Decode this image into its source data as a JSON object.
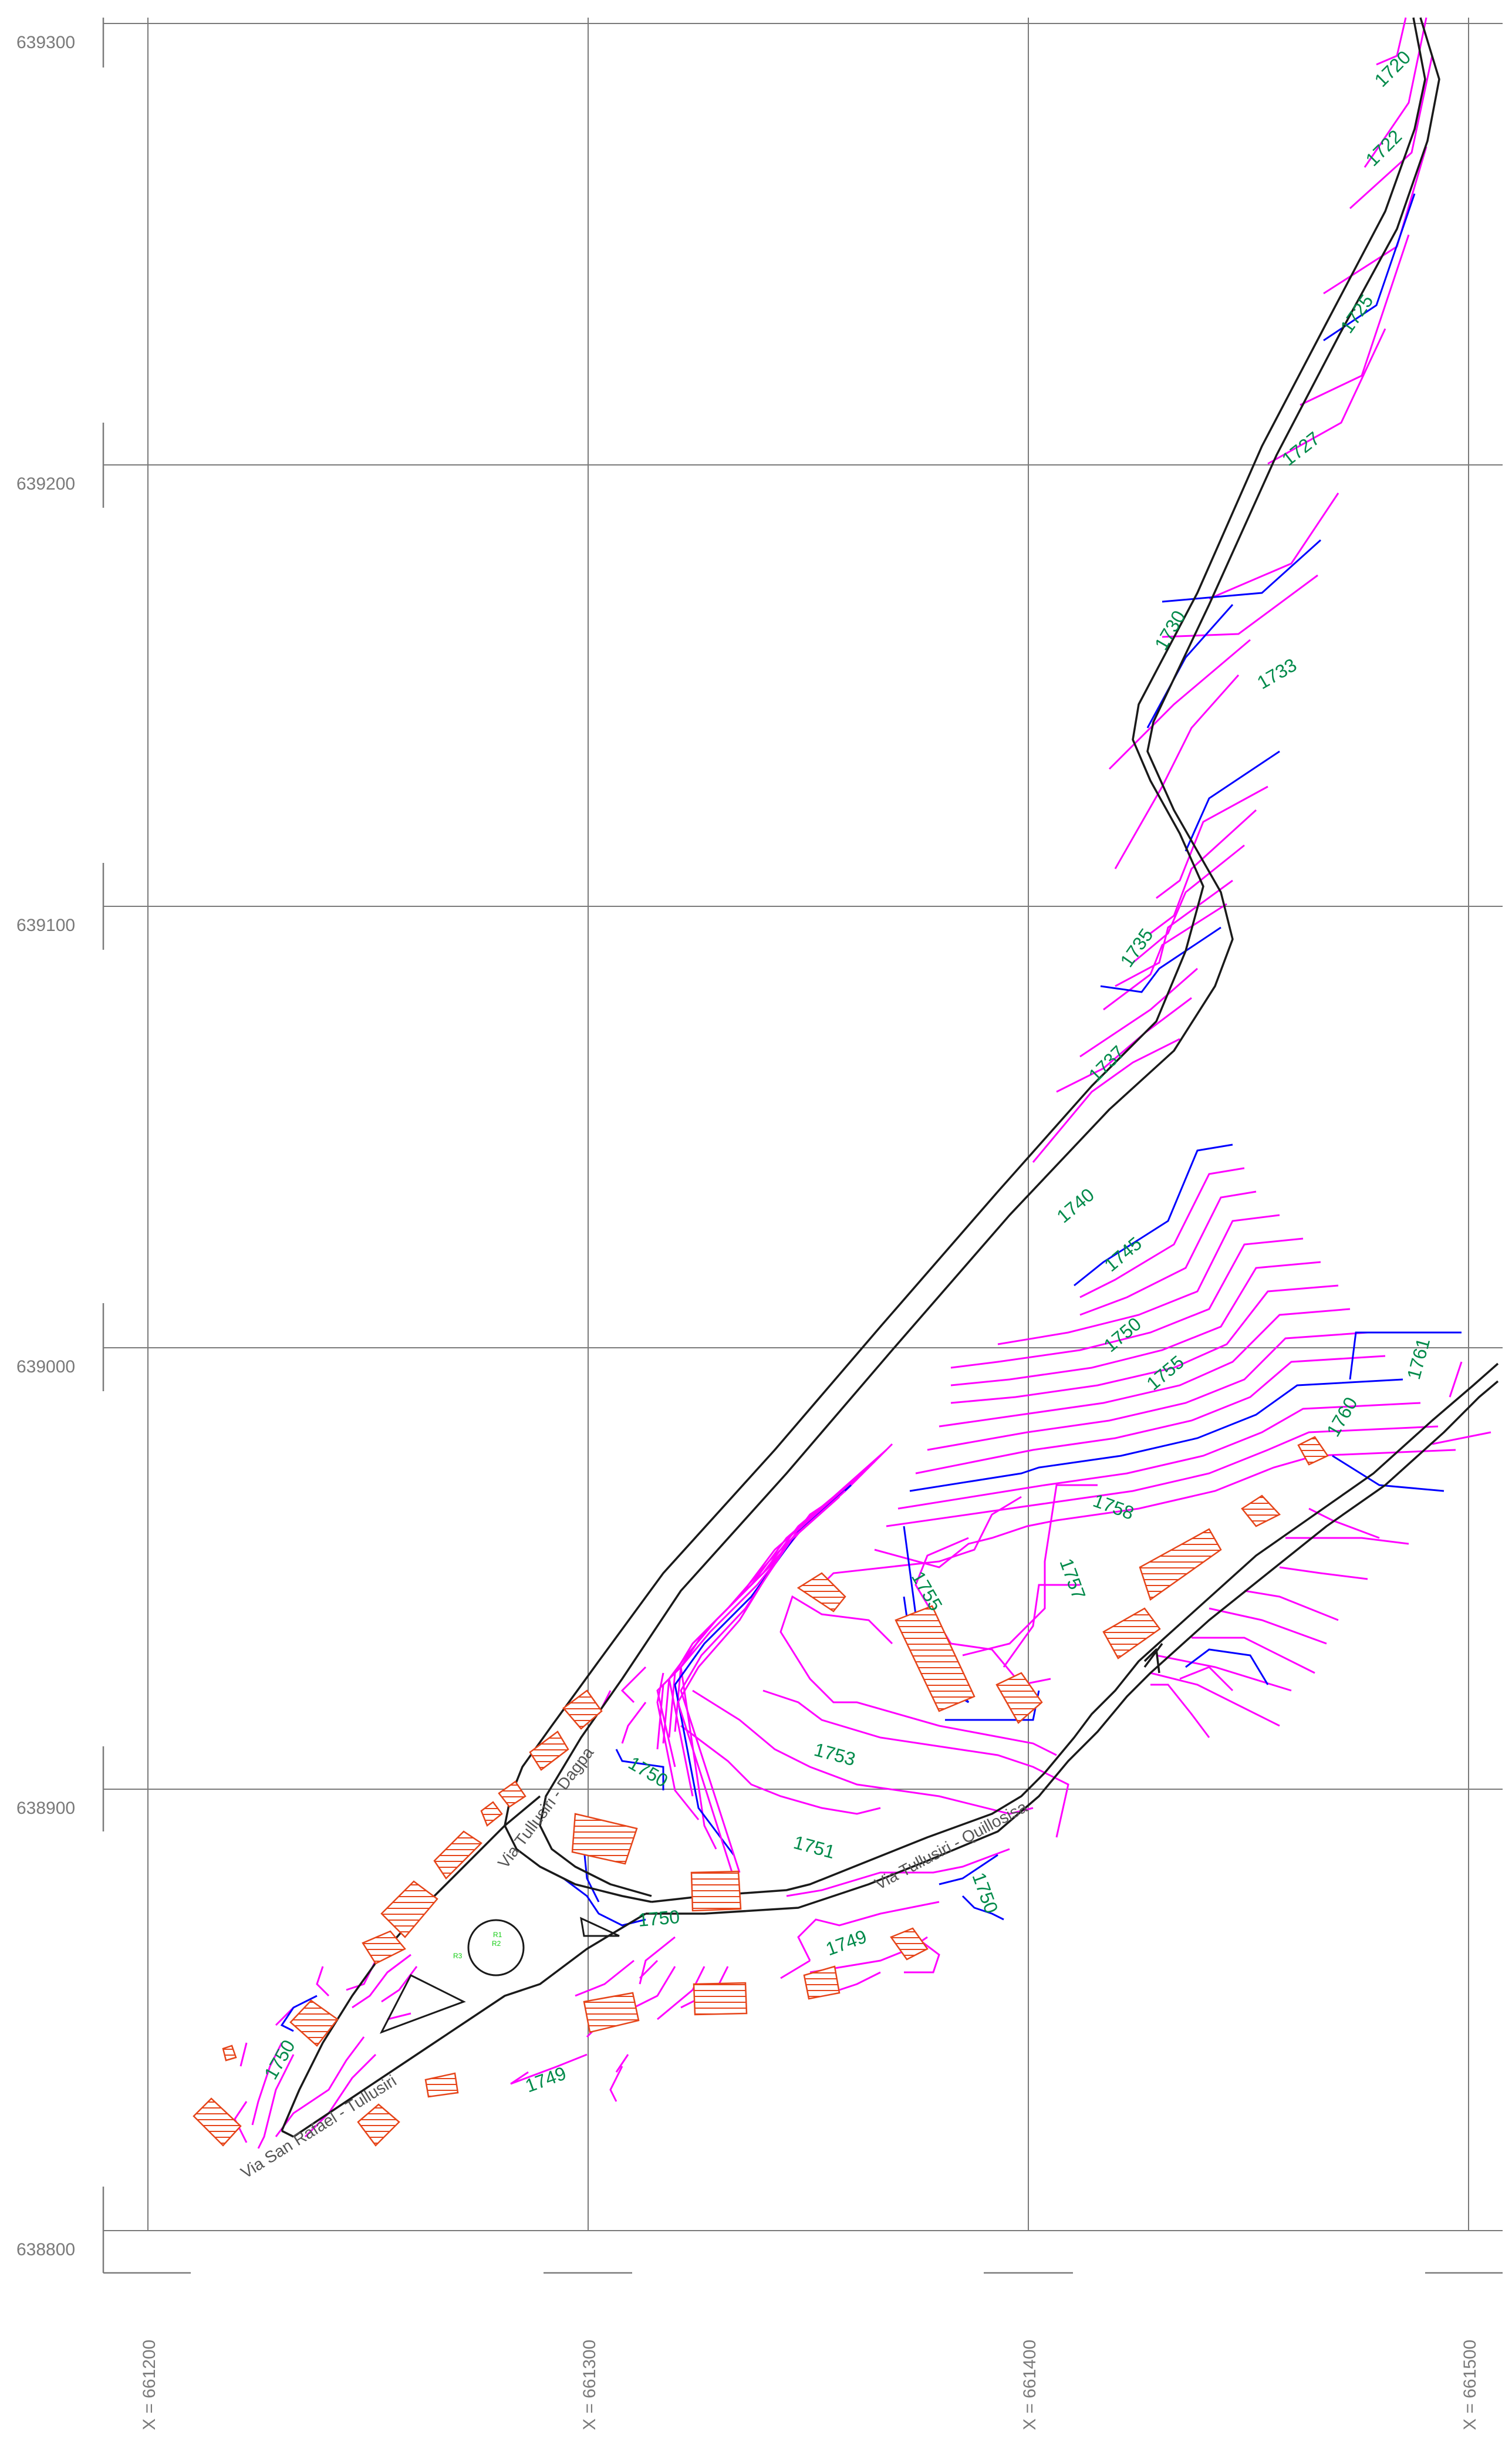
{
  "grid": {
    "northings": [
      "639300",
      "639200",
      "639100",
      "639000",
      "638900",
      "638800"
    ],
    "eastings": [
      "X = 661200",
      "X = 661300",
      "X = 661400",
      "X = 661500"
    ]
  },
  "contour_labels": [
    "1720",
    "1722",
    "1725",
    "1727",
    "1730",
    "1733",
    "1735",
    "1737",
    "1740",
    "1745",
    "1750",
    "1755",
    "1760",
    "1761",
    "1758",
    "1757",
    "1755",
    "1753",
    "1750",
    "1751",
    "1750",
    "1750",
    "1749",
    "1750",
    "1749"
  ],
  "road_labels": [
    "Via Tullusiri - Dagpa",
    "Via Tullusiri - Quillosisa",
    "Via San Rafael - Tullusiri"
  ],
  "roundabout_labels": [
    "R1",
    "R2",
    "R3"
  ],
  "colors": {
    "contour_minor": "#ff00ff",
    "contour_major": "#0000ff",
    "contour_label": "#008a4a",
    "building": "#e6451a",
    "road": "#1a1a1a",
    "grid": "#7a7a7a"
  }
}
